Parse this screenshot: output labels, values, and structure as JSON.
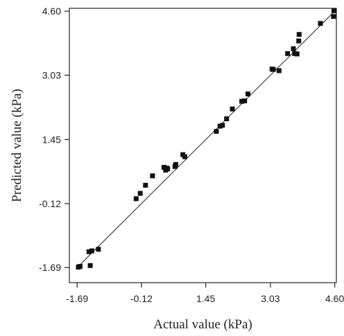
{
  "chart_data": {
    "type": "scatter",
    "xlabel": "Actual value (kPa)",
    "ylabel": "Predicted value (kPa)",
    "x_ticks": [
      "-1.69",
      "-0.12",
      "1.45",
      "3.03",
      "4.60"
    ],
    "y_ticks": [
      "-1.69",
      "-0.12",
      "1.45",
      "3.03",
      "4.60"
    ],
    "xlim": [
      -1.88,
      4.64
    ],
    "ylim": [
      -2.06,
      4.67
    ],
    "grid": false,
    "fit_line": {
      "x": [
        -1.69,
        4.6
      ],
      "y": [
        -1.69,
        4.6
      ]
    },
    "colors": {
      "points": "#111111",
      "line": "#222222",
      "axes": "#222222"
    },
    "points": [
      {
        "x": -1.66,
        "y": -1.68
      },
      {
        "x": -1.62,
        "y": -1.66
      },
      {
        "x": -1.37,
        "y": -1.64
      },
      {
        "x": -1.4,
        "y": -1.3
      },
      {
        "x": -1.33,
        "y": -1.28
      },
      {
        "x": -1.17,
        "y": -1.24
      },
      {
        "x": -0.25,
        "y": 0.0
      },
      {
        "x": -0.15,
        "y": 0.13
      },
      {
        "x": -0.02,
        "y": 0.33
      },
      {
        "x": 0.15,
        "y": 0.56
      },
      {
        "x": 0.43,
        "y": 0.77
      },
      {
        "x": 0.5,
        "y": 0.75
      },
      {
        "x": 0.47,
        "y": 0.7
      },
      {
        "x": 0.52,
        "y": 0.73
      },
      {
        "x": 0.7,
        "y": 0.79
      },
      {
        "x": 0.72,
        "y": 0.84
      },
      {
        "x": 0.89,
        "y": 1.08
      },
      {
        "x": 0.94,
        "y": 1.03
      },
      {
        "x": 1.71,
        "y": 1.65
      },
      {
        "x": 1.8,
        "y": 1.78
      },
      {
        "x": 1.86,
        "y": 1.8
      },
      {
        "x": 1.96,
        "y": 1.96
      },
      {
        "x": 2.1,
        "y": 2.2
      },
      {
        "x": 2.33,
        "y": 2.39
      },
      {
        "x": 2.4,
        "y": 2.4
      },
      {
        "x": 2.48,
        "y": 2.57
      },
      {
        "x": 3.07,
        "y": 3.18
      },
      {
        "x": 3.1,
        "y": 3.17
      },
      {
        "x": 3.24,
        "y": 3.14
      },
      {
        "x": 3.45,
        "y": 3.56
      },
      {
        "x": 3.59,
        "y": 3.68
      },
      {
        "x": 3.62,
        "y": 3.56
      },
      {
        "x": 3.68,
        "y": 3.55
      },
      {
        "x": 3.72,
        "y": 3.87
      },
      {
        "x": 3.73,
        "y": 4.03
      },
      {
        "x": 4.25,
        "y": 4.3
      },
      {
        "x": 4.57,
        "y": 4.47
      },
      {
        "x": 4.58,
        "y": 4.61
      }
    ]
  }
}
